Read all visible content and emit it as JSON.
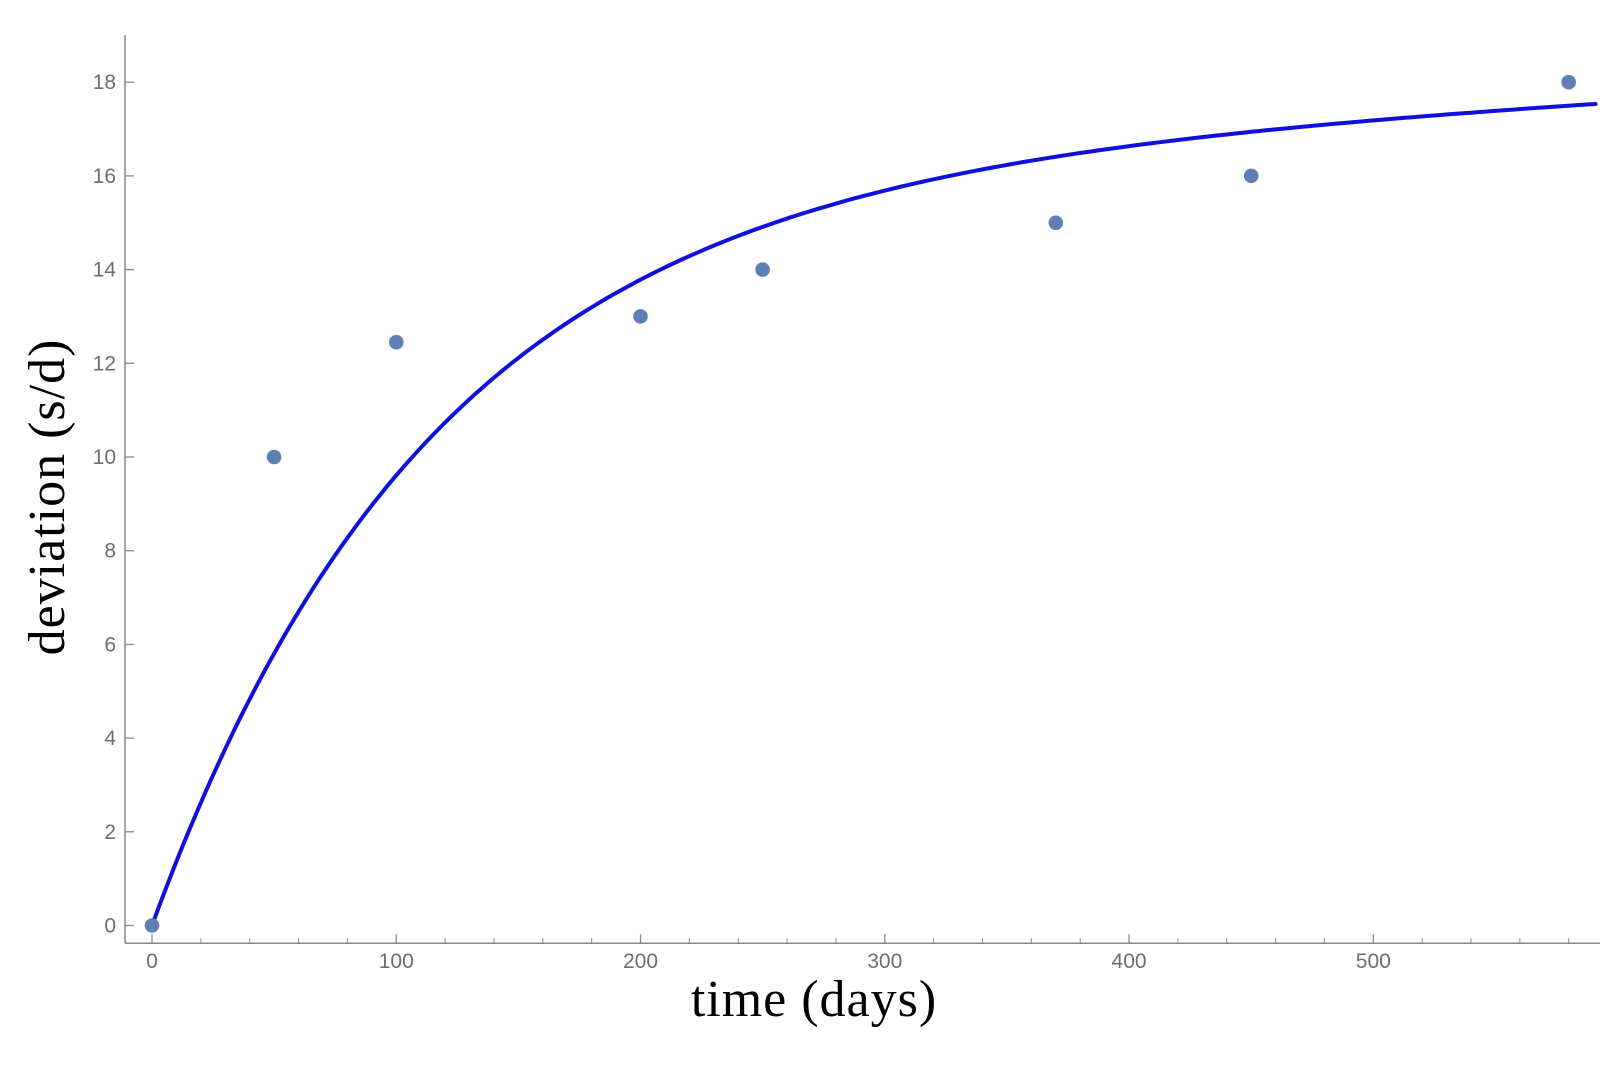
{
  "chart_data": {
    "type": "scatter",
    "title": "",
    "xlabel": "time (days)",
    "ylabel": "deviation (s/d)",
    "x_ticks": [
      0,
      100,
      200,
      300,
      400,
      500
    ],
    "x_minor_tick_step": 20,
    "x_minor_tick_max": 580,
    "y_ticks": [
      0,
      2,
      4,
      6,
      8,
      10,
      12,
      14,
      16,
      18
    ],
    "xlim": [
      -11,
      593
    ],
    "ylim": [
      -0.4,
      19
    ],
    "grid": "off",
    "legend": "none",
    "points": [
      {
        "t": 0,
        "deviation": 0
      },
      {
        "t": 50,
        "deviation": 10
      },
      {
        "t": 100,
        "deviation": 12.45
      },
      {
        "t": 200,
        "deviation": 13
      },
      {
        "t": 250,
        "deviation": 14
      },
      {
        "t": 370,
        "deviation": 15
      },
      {
        "t": 450,
        "deviation": 16
      },
      {
        "t": 580,
        "deviation": 18
      }
    ],
    "fit_curve": {
      "model": "a*(1-exp(-b*t)) + c*t",
      "a": 16.086,
      "b": 0.0087,
      "c": 0.002612,
      "t_range": [
        0,
        593
      ]
    },
    "colors": {
      "points": "#5E81B5",
      "curve": "#1010DC",
      "axis": "#898989",
      "tick_labels": "#6E6E6E",
      "axis_labels": "#4D5F9C"
    }
  }
}
